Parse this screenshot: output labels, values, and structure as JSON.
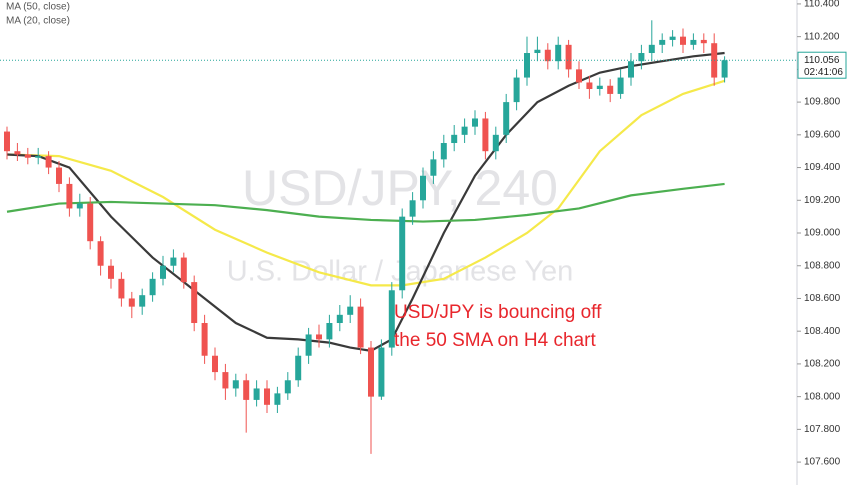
{
  "chart_data": {
    "type": "candlestick",
    "legend": [
      "MA (50, close)",
      "MA (20, close)"
    ],
    "watermark": {
      "symbol": "USD/JPY, 240",
      "description": "U.S. Dollar / Japanese Yen"
    },
    "annotation": [
      "USD/JPY is bouncing off",
      "the 50 SMA on H4 chart"
    ],
    "up_color": "#26a69a",
    "down_color": "#ef5350",
    "ylim": [
      107.46,
      110.424
    ],
    "yticks": [
      {
        "value": 107.6,
        "label": "107.600"
      },
      {
        "value": 107.8,
        "label": "107.800"
      },
      {
        "value": 108.0,
        "label": "108.000"
      },
      {
        "value": 108.2,
        "label": "108.200"
      },
      {
        "value": 108.4,
        "label": "108.400"
      },
      {
        "value": 108.6,
        "label": "108.600"
      },
      {
        "value": 108.8,
        "label": "108.800"
      },
      {
        "value": 109.0,
        "label": "109.000"
      },
      {
        "value": 109.2,
        "label": "109.200"
      },
      {
        "value": 109.4,
        "label": "109.400"
      },
      {
        "value": 109.6,
        "label": "109.600"
      },
      {
        "value": 109.8,
        "label": "109.800"
      },
      {
        "value": 110.0,
        "label": "110.000"
      },
      {
        "value": 110.2,
        "label": "110.200"
      },
      {
        "value": 110.4,
        "label": "110.400"
      }
    ],
    "last_price": 110.056,
    "countdown": "02:41:06",
    "last_price_color": "#26a69a",
    "candles": {
      "open": [
        109.62,
        109.5,
        109.48,
        109.46,
        109.47,
        109.4,
        109.3,
        109.15,
        109.18,
        108.95,
        108.8,
        108.72,
        108.6,
        108.55,
        108.62,
        108.72,
        108.8,
        108.85,
        108.7,
        108.45,
        108.25,
        108.15,
        108.05,
        108.1,
        107.98,
        108.05,
        107.95,
        108.02,
        108.1,
        108.25,
        108.38,
        108.35,
        108.45,
        108.5,
        108.55,
        108.3,
        108.0,
        108.3,
        108.65,
        109.1,
        109.2,
        109.35,
        109.45,
        109.55,
        109.6,
        109.65,
        109.7,
        109.5,
        109.6,
        109.8,
        109.95,
        110.1,
        110.12,
        110.05,
        110.15,
        110.0,
        109.92,
        109.88,
        109.9,
        109.85,
        109.95,
        110.05,
        110.1,
        110.15,
        110.18,
        110.2,
        110.15,
        110.18,
        110.16,
        109.95
      ],
      "high": [
        109.65,
        109.55,
        109.52,
        109.52,
        109.5,
        109.44,
        109.34,
        109.24,
        109.22,
        108.98,
        108.84,
        108.76,
        108.64,
        108.66,
        108.76,
        108.86,
        108.9,
        108.88,
        108.74,
        108.5,
        108.3,
        108.2,
        108.14,
        108.14,
        108.1,
        108.1,
        108.06,
        108.15,
        108.3,
        108.42,
        108.44,
        108.5,
        108.56,
        108.62,
        108.6,
        108.34,
        108.35,
        108.7,
        109.15,
        109.25,
        109.4,
        109.5,
        109.6,
        109.66,
        109.7,
        109.75,
        109.74,
        109.65,
        109.85,
        110.0,
        110.2,
        110.2,
        110.16,
        110.2,
        110.18,
        110.05,
        109.96,
        109.95,
        109.94,
        110.0,
        110.1,
        110.15,
        110.3,
        110.22,
        110.24,
        110.25,
        110.22,
        110.22,
        110.22,
        110.08
      ],
      "low": [
        109.45,
        109.44,
        109.42,
        109.42,
        109.36,
        109.25,
        109.1,
        109.1,
        108.9,
        108.74,
        108.66,
        108.55,
        108.48,
        108.5,
        108.58,
        108.68,
        108.76,
        108.66,
        108.4,
        108.2,
        108.1,
        107.98,
        108.0,
        107.78,
        107.94,
        107.9,
        107.9,
        107.98,
        108.06,
        108.2,
        108.3,
        108.3,
        108.4,
        108.45,
        108.26,
        107.65,
        107.98,
        108.25,
        108.6,
        109.05,
        109.15,
        109.3,
        109.4,
        109.5,
        109.55,
        109.6,
        109.45,
        109.45,
        109.55,
        109.75,
        109.9,
        110.05,
        110.0,
        110.0,
        109.95,
        109.88,
        109.82,
        109.84,
        109.8,
        109.82,
        109.9,
        110.0,
        110.05,
        110.1,
        110.14,
        110.1,
        110.12,
        110.1,
        109.9,
        109.92
      ],
      "close": [
        109.5,
        109.48,
        109.46,
        109.47,
        109.4,
        109.3,
        109.15,
        109.18,
        108.95,
        108.8,
        108.72,
        108.6,
        108.55,
        108.62,
        108.72,
        108.8,
        108.85,
        108.7,
        108.45,
        108.25,
        108.15,
        108.05,
        108.1,
        107.98,
        108.05,
        107.95,
        108.02,
        108.1,
        108.25,
        108.38,
        108.35,
        108.45,
        108.5,
        108.55,
        108.3,
        108.0,
        108.3,
        108.65,
        109.1,
        109.2,
        109.35,
        109.45,
        109.55,
        109.6,
        109.65,
        109.7,
        109.5,
        109.6,
        109.8,
        109.95,
        110.1,
        110.12,
        110.05,
        110.15,
        110.0,
        109.92,
        109.88,
        109.9,
        109.85,
        109.95,
        110.05,
        110.1,
        110.15,
        110.18,
        110.2,
        110.15,
        110.18,
        110.16,
        109.95,
        110.056
      ]
    },
    "series": [
      {
        "color": "#f5e94a",
        "x": [
          0,
          5,
          10,
          15,
          20,
          25,
          30,
          35,
          38,
          42,
          46,
          50,
          53,
          57,
          61,
          65,
          69
        ],
        "values": [
          109.48,
          109.47,
          109.38,
          109.22,
          109.02,
          108.88,
          108.76,
          108.68,
          108.68,
          108.72,
          108.85,
          109.0,
          109.15,
          109.5,
          109.72,
          109.85,
          109.93
        ]
      },
      {
        "color": "#3a3a3a",
        "x": [
          0,
          3,
          6,
          10,
          14,
          18,
          22,
          25,
          28,
          31,
          33,
          35,
          37,
          39,
          42,
          45,
          48,
          51,
          54,
          57,
          60,
          63,
          66,
          69
        ],
        "values": [
          109.48,
          109.47,
          109.4,
          109.1,
          108.85,
          108.65,
          108.45,
          108.36,
          108.35,
          108.33,
          108.3,
          108.28,
          108.35,
          108.6,
          109.0,
          109.35,
          109.6,
          109.8,
          109.9,
          109.98,
          110.02,
          110.05,
          110.08,
          110.1
        ]
      },
      {
        "color": "#4caf50",
        "x": [
          0,
          5,
          10,
          15,
          20,
          25,
          30,
          35,
          40,
          45,
          50,
          55,
          60,
          65,
          69
        ],
        "values": [
          109.13,
          109.18,
          109.19,
          109.18,
          109.17,
          109.14,
          109.1,
          109.08,
          109.07,
          109.08,
          109.11,
          109.15,
          109.23,
          109.27,
          109.3
        ]
      }
    ]
  }
}
